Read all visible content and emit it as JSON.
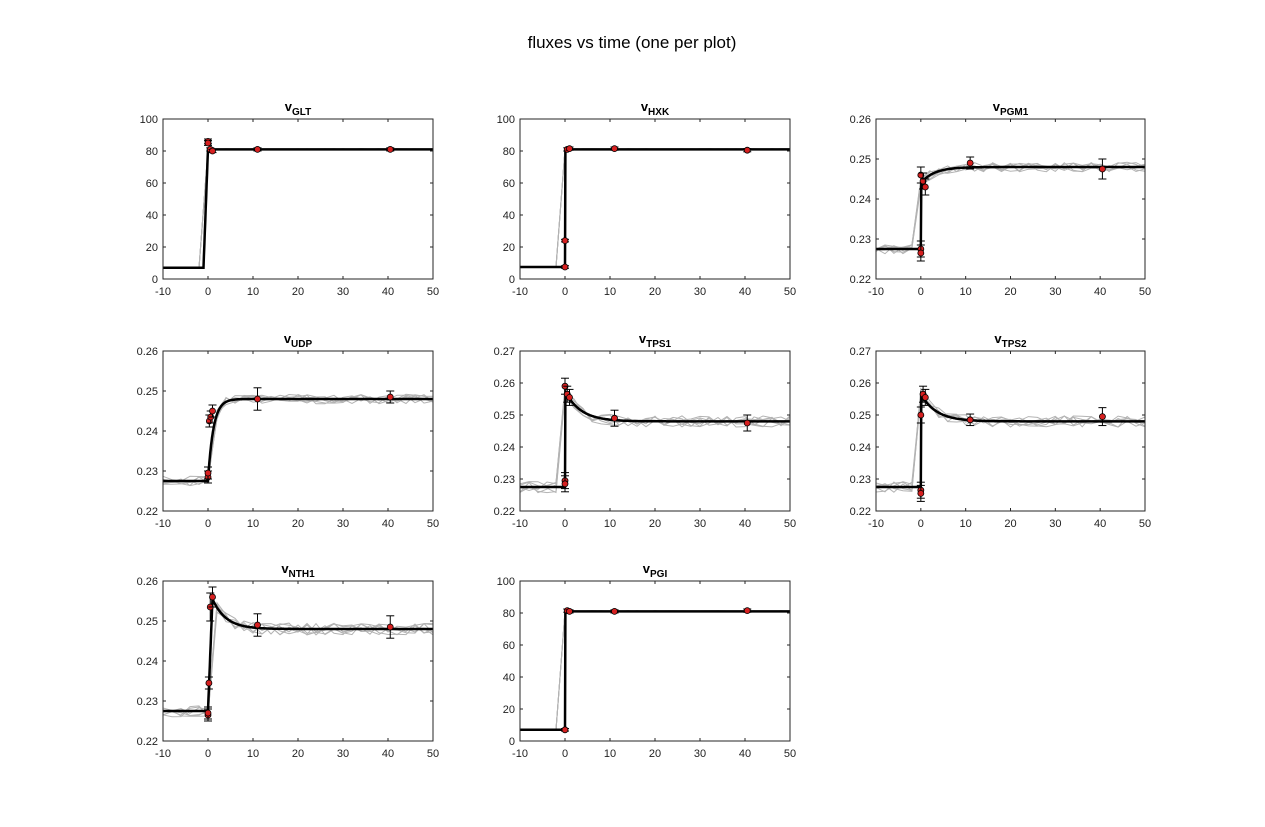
{
  "figure": {
    "title": "fluxes vs time (one per plot)"
  },
  "colors": {
    "model": "#000000",
    "replicates": "#b3b3b3",
    "data_marker": "#d62020",
    "axes": "#262626"
  },
  "chart_data": [
    {
      "type": "line",
      "title_main": "v",
      "title_sub": "GLT",
      "xlim": [
        -10,
        50
      ],
      "ylim": [
        0,
        100
      ],
      "xticks": [
        -10,
        0,
        10,
        20,
        30,
        40,
        50
      ],
      "yticks": [
        0,
        20,
        40,
        60,
        80,
        100
      ],
      "model": {
        "pre": 7,
        "post": 81,
        "peak": 81,
        "tau": 1,
        "rise_start": -1,
        "rise_end": 0
      },
      "noise": 0.4,
      "data": [
        {
          "x": 0,
          "y": 86,
          "err": 1.5
        },
        {
          "x": 0,
          "y": 85,
          "err": 1.5
        },
        {
          "x": 0.5,
          "y": 81,
          "err": 1
        },
        {
          "x": 1,
          "y": 80,
          "err": 1
        },
        {
          "x": 11,
          "y": 81,
          "err": 1
        },
        {
          "x": 40.5,
          "y": 81,
          "err": 1
        }
      ]
    },
    {
      "type": "line",
      "title_main": "v",
      "title_sub": "HXK",
      "xlim": [
        -10,
        50
      ],
      "ylim": [
        0,
        100
      ],
      "xticks": [
        -10,
        0,
        10,
        20,
        30,
        40,
        50
      ],
      "yticks": [
        0,
        20,
        40,
        60,
        80,
        100
      ],
      "model": {
        "pre": 7.5,
        "post": 81,
        "peak": 81,
        "tau": 1,
        "rise_start": 0,
        "rise_end": 0
      },
      "noise": 0.4,
      "data": [
        {
          "x": 0,
          "y": 7.5,
          "err": 0.8
        },
        {
          "x": 0,
          "y": 24,
          "err": 0.8
        },
        {
          "x": 0.5,
          "y": 81,
          "err": 1
        },
        {
          "x": 1,
          "y": 81.5,
          "err": 1
        },
        {
          "x": 11,
          "y": 81.5,
          "err": 1
        },
        {
          "x": 40.5,
          "y": 80.5,
          "err": 1
        }
      ]
    },
    {
      "type": "line",
      "title_main": "v",
      "title_sub": "PGM1",
      "xlim": [
        -10,
        50
      ],
      "ylim": [
        0.22,
        0.26
      ],
      "xticks": [
        -10,
        0,
        10,
        20,
        30,
        40,
        50
      ],
      "yticks": [
        0.22,
        0.23,
        0.24,
        0.25,
        0.26
      ],
      "model": {
        "pre": 0.2275,
        "post": 0.248,
        "peak": 0.244,
        "tau": 3,
        "rise_start": 0,
        "rise_end": 0
      },
      "noise": 0.0012,
      "data": [
        {
          "x": 0,
          "y": 0.2275,
          "err": 0.002
        },
        {
          "x": 0,
          "y": 0.2265,
          "err": 0.002
        },
        {
          "x": 0,
          "y": 0.246,
          "err": 0.002
        },
        {
          "x": 0.5,
          "y": 0.2445,
          "err": 0.002
        },
        {
          "x": 1,
          "y": 0.243,
          "err": 0.002
        },
        {
          "x": 11,
          "y": 0.249,
          "err": 0.0015
        },
        {
          "x": 40.5,
          "y": 0.2475,
          "err": 0.0025
        }
      ]
    },
    {
      "type": "line",
      "title_main": "v",
      "title_sub": "UDP",
      "xlim": [
        -10,
        50
      ],
      "ylim": [
        0.22,
        0.26
      ],
      "xticks": [
        -10,
        0,
        10,
        20,
        30,
        40,
        50
      ],
      "yticks": [
        0.22,
        0.23,
        0.24,
        0.25,
        0.26
      ],
      "model": {
        "pre": 0.2275,
        "post": 0.248,
        "peak": 0.2275,
        "tau": 1.2,
        "rise_start": 0,
        "rise_end": 0
      },
      "noise": 0.0012,
      "data": [
        {
          "x": 0,
          "y": 0.2285,
          "err": 0.0015
        },
        {
          "x": 0,
          "y": 0.2295,
          "err": 0.0015
        },
        {
          "x": 0.3,
          "y": 0.2425,
          "err": 0.0015
        },
        {
          "x": 0.6,
          "y": 0.2435,
          "err": 0.0015
        },
        {
          "x": 1,
          "y": 0.245,
          "err": 0.0015
        },
        {
          "x": 11,
          "y": 0.248,
          "err": 0.0028
        },
        {
          "x": 40.5,
          "y": 0.2485,
          "err": 0.0015
        }
      ]
    },
    {
      "type": "line",
      "title_main": "v",
      "title_sub": "TPS1",
      "xlim": [
        -10,
        50
      ],
      "ylim": [
        0.22,
        0.27
      ],
      "xticks": [
        -10,
        0,
        10,
        20,
        30,
        40,
        50
      ],
      "yticks": [
        0.22,
        0.23,
        0.24,
        0.25,
        0.26,
        0.27
      ],
      "model": {
        "pre": 0.2275,
        "post": 0.248,
        "peak": 0.2575,
        "tau": 3.5,
        "rise_start": 0,
        "rise_end": 0
      },
      "noise": 0.0018,
      "data": [
        {
          "x": 0,
          "y": 0.2295,
          "err": 0.0025
        },
        {
          "x": 0,
          "y": 0.2285,
          "err": 0.0025
        },
        {
          "x": 0,
          "y": 0.259,
          "err": 0.0025
        },
        {
          "x": 0.5,
          "y": 0.2565,
          "err": 0.0025
        },
        {
          "x": 1,
          "y": 0.2555,
          "err": 0.0025
        },
        {
          "x": 11,
          "y": 0.249,
          "err": 0.0025
        },
        {
          "x": 40.5,
          "y": 0.2475,
          "err": 0.0025
        }
      ]
    },
    {
      "type": "line",
      "title_main": "v",
      "title_sub": "TPS2",
      "xlim": [
        -10,
        50
      ],
      "ylim": [
        0.22,
        0.27
      ],
      "xticks": [
        -10,
        0,
        10,
        20,
        30,
        40,
        50
      ],
      "yticks": [
        0.22,
        0.23,
        0.24,
        0.25,
        0.26,
        0.27
      ],
      "model": {
        "pre": 0.2275,
        "post": 0.248,
        "peak": 0.2565,
        "tau": 3.5,
        "rise_start": 0,
        "rise_end": 0
      },
      "noise": 0.0018,
      "data": [
        {
          "x": 0,
          "y": 0.2265,
          "err": 0.0025
        },
        {
          "x": 0,
          "y": 0.2255,
          "err": 0.0025
        },
        {
          "x": 0,
          "y": 0.25,
          "err": 0.0025
        },
        {
          "x": 0.5,
          "y": 0.2565,
          "err": 0.0025
        },
        {
          "x": 1,
          "y": 0.2555,
          "err": 0.0025
        },
        {
          "x": 11,
          "y": 0.2485,
          "err": 0.0018
        },
        {
          "x": 40.5,
          "y": 0.2495,
          "err": 0.0028
        }
      ]
    },
    {
      "type": "line",
      "title_main": "v",
      "title_sub": "NTH1",
      "xlim": [
        -10,
        50
      ],
      "ylim": [
        0.22,
        0.26
      ],
      "xticks": [
        -10,
        0,
        10,
        20,
        30,
        40,
        50
      ],
      "yticks": [
        0.22,
        0.23,
        0.24,
        0.25,
        0.26
      ],
      "model": {
        "pre": 0.2275,
        "post": 0.248,
        "peak": 0.2555,
        "tau": 3,
        "rise_start": 0,
        "rise_end": 1
      },
      "noise": 0.0015,
      "data": [
        {
          "x": 0,
          "y": 0.2265,
          "err": 0.0015
        },
        {
          "x": 0,
          "y": 0.227,
          "err": 0.0015
        },
        {
          "x": 0.2,
          "y": 0.2345,
          "err": 0.0015
        },
        {
          "x": 0.5,
          "y": 0.2535,
          "err": 0.0035
        },
        {
          "x": 1,
          "y": 0.256,
          "err": 0.0025
        },
        {
          "x": 11,
          "y": 0.249,
          "err": 0.0028
        },
        {
          "x": 40.5,
          "y": 0.2485,
          "err": 0.0028
        }
      ]
    },
    {
      "type": "line",
      "title_main": "v",
      "title_sub": "PGI",
      "xlim": [
        -10,
        50
      ],
      "ylim": [
        0,
        100
      ],
      "xticks": [
        -10,
        0,
        10,
        20,
        30,
        40,
        50
      ],
      "yticks": [
        0,
        20,
        40,
        60,
        80,
        100
      ],
      "model": {
        "pre": 7,
        "post": 81,
        "peak": 81,
        "tau": 1,
        "rise_start": 0,
        "rise_end": 0
      },
      "noise": 0.4,
      "data": [
        {
          "x": 0,
          "y": 7,
          "err": 0.8
        },
        {
          "x": 0.5,
          "y": 81.5,
          "err": 1
        },
        {
          "x": 1,
          "y": 81,
          "err": 1
        },
        {
          "x": 11,
          "y": 81,
          "err": 1
        },
        {
          "x": 40.5,
          "y": 81.5,
          "err": 1
        }
      ]
    }
  ]
}
